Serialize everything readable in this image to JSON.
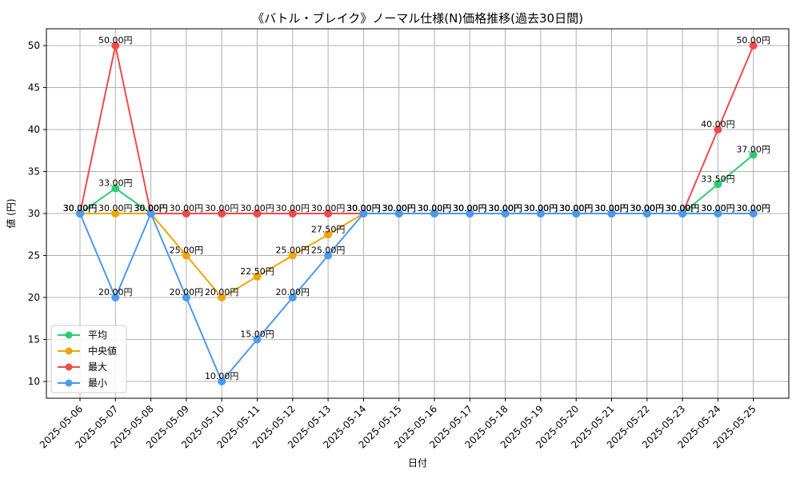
{
  "chart_data": {
    "type": "line",
    "title": "《バトル・ブレイク》ノーマル仕様(N)価格推移(過去30日間)",
    "xlabel": "日付",
    "ylabel": "値 (円)",
    "ylim": [
      8,
      52
    ],
    "yticks": [
      10,
      15,
      20,
      25,
      30,
      35,
      40,
      45,
      50
    ],
    "grid": true,
    "legend_position": "lower-left",
    "categories": [
      "2025-05-06",
      "2025-05-07",
      "2025-05-08",
      "2025-05-09",
      "2025-05-10",
      "2025-05-11",
      "2025-05-12",
      "2025-05-13",
      "2025-05-14",
      "2025-05-15",
      "2025-05-16",
      "2025-05-17",
      "2025-05-18",
      "2025-05-19",
      "2025-05-20",
      "2025-05-21",
      "2025-05-22",
      "2025-05-23",
      "2025-05-24",
      "2025-05-25"
    ],
    "series": [
      {
        "name": "平均",
        "color": "#2ecc71",
        "values": [
          30,
          33,
          30,
          30,
          30,
          30,
          30,
          30,
          30,
          30,
          30,
          30,
          30,
          30,
          30,
          30,
          30,
          30,
          33.5,
          37
        ],
        "labels": [
          "30.00円",
          "33.00円",
          "30.00円",
          "",
          "",
          "",
          "",
          "",
          "30.00円",
          "30.00円",
          "30.00円",
          "30.00円",
          "30.00円",
          "30.00円",
          "30.00円",
          "30.00円",
          "30.00円",
          "30.00円",
          "33.50円",
          "37.00円"
        ]
      },
      {
        "name": "中央値",
        "color": "#f0a500",
        "values": [
          30,
          30,
          30,
          25,
          20,
          22.5,
          25,
          27.5,
          30,
          30,
          30,
          30,
          30,
          30,
          30,
          30,
          30,
          30,
          30,
          30
        ],
        "labels": [
          "30.00円",
          "30.00円",
          "30.00円",
          "25.00円",
          "20.00円",
          "22.50円",
          "25.00円",
          "27.50円",
          "30.00円",
          "30.00円",
          "30.00円",
          "30.00円",
          "30.00円",
          "30.00円",
          "30.00円",
          "30.00円",
          "30.00円",
          "30.00円",
          "30.00円",
          "30.00円"
        ]
      },
      {
        "name": "最大",
        "color": "#f04a4a",
        "values": [
          30,
          50,
          30,
          30,
          30,
          30,
          30,
          30,
          30,
          30,
          30,
          30,
          30,
          30,
          30,
          30,
          30,
          30,
          40,
          50
        ],
        "labels": [
          "30.00円",
          "50.00円",
          "30.00円",
          "30.00円",
          "30.00円",
          "30.00円",
          "30.00円",
          "30.00円",
          "30.00円",
          "30.00円",
          "30.00円",
          "30.00円",
          "30.00円",
          "30.00円",
          "30.00円",
          "30.00円",
          "30.00円",
          "30.00円",
          "40.00円",
          "50.00円"
        ]
      },
      {
        "name": "最小",
        "color": "#4a9af0",
        "values": [
          30,
          20,
          30,
          20,
          10,
          15,
          20,
          25,
          30,
          30,
          30,
          30,
          30,
          30,
          30,
          30,
          30,
          30,
          30,
          30
        ],
        "labels": [
          "30.00円",
          "20.00円",
          "30.00円",
          "20.00円",
          "10.00円",
          "15.00円",
          "20.00円",
          "25.00円",
          "30.00円",
          "30.00円",
          "30.00円",
          "30.00円",
          "30.00円",
          "30.00円",
          "30.00円",
          "30.00円",
          "30.00円",
          "30.00円",
          "30.00円",
          "30.00円"
        ]
      }
    ]
  }
}
